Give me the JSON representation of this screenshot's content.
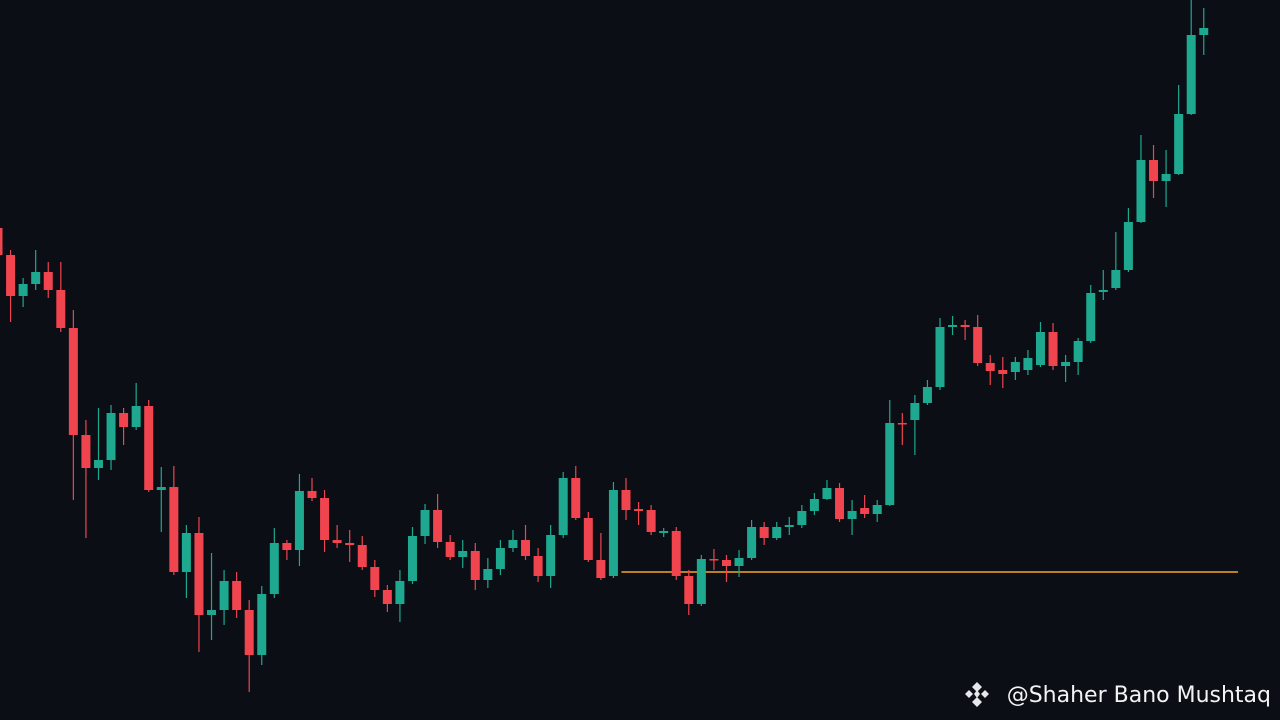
{
  "chart_data": {
    "type": "candlestick",
    "ylim": [
      0,
      720
    ],
    "up_color": "#1ea88f",
    "down_color": "#f0444f",
    "open": [
      492,
      465,
      424,
      436,
      448,
      430,
      392,
      285,
      252,
      260,
      307,
      293,
      314,
      230,
      233,
      148,
      187,
      105,
      110,
      139,
      110,
      65,
      126,
      177,
      170,
      229,
      222,
      180,
      177,
      175,
      153,
      130,
      116,
      139,
      184,
      210,
      178,
      163,
      169,
      140,
      151,
      172,
      180,
      164,
      144,
      185,
      242,
      202,
      160,
      144,
      230,
      211,
      210,
      187,
      189,
      144,
      116,
      161,
      160,
      154,
      162,
      193,
      182,
      193,
      195,
      209,
      221,
      232,
      201,
      212,
      206,
      215,
      297,
      300,
      317,
      333,
      393,
      395,
      393,
      357,
      350,
      348,
      350,
      355,
      388,
      354,
      358,
      379,
      428,
      432,
      450,
      498,
      560,
      539,
      546,
      606,
      685
    ],
    "high": [
      498,
      470,
      442,
      470,
      458,
      458,
      410,
      300,
      312,
      315,
      312,
      337,
      320,
      253,
      254,
      195,
      203,
      167,
      150,
      148,
      120,
      134,
      192,
      180,
      246,
      242,
      230,
      195,
      190,
      184,
      160,
      135,
      150,
      193,
      216,
      226,
      185,
      180,
      177,
      162,
      180,
      190,
      195,
      172,
      195,
      248,
      254,
      208,
      187,
      238,
      242,
      218,
      215,
      192,
      193,
      150,
      165,
      171,
      165,
      170,
      200,
      198,
      198,
      203,
      215,
      227,
      240,
      237,
      220,
      225,
      220,
      320,
      307,
      325,
      340,
      402,
      404,
      400,
      405,
      365,
      363,
      363,
      370,
      398,
      397,
      365,
      382,
      435,
      450,
      488,
      512,
      585,
      575,
      570,
      635,
      720,
      712
    ],
    "low": [
      462,
      398,
      413,
      430,
      422,
      388,
      220,
      182,
      240,
      250,
      275,
      290,
      228,
      188,
      145,
      122,
      68,
      80,
      95,
      102,
      28,
      55,
      122,
      160,
      154,
      219,
      168,
      172,
      158,
      150,
      123,
      108,
      98,
      136,
      176,
      172,
      160,
      152,
      130,
      132,
      145,
      168,
      160,
      138,
      132,
      182,
      200,
      158,
      140,
      142,
      200,
      195,
      185,
      183,
      140,
      105,
      114,
      150,
      138,
      143,
      160,
      175,
      180,
      185,
      192,
      205,
      220,
      198,
      185,
      202,
      198,
      214,
      275,
      265,
      315,
      330,
      385,
      380,
      354,
      335,
      332,
      340,
      345,
      353,
      350,
      338,
      345,
      377,
      420,
      430,
      448,
      497,
      522,
      513,
      545,
      605,
      665
    ],
    "close": [
      465,
      424,
      436,
      448,
      430,
      392,
      285,
      252,
      260,
      307,
      293,
      314,
      230,
      233,
      148,
      187,
      105,
      110,
      139,
      110,
      65,
      126,
      177,
      170,
      229,
      222,
      180,
      177,
      175,
      153,
      130,
      116,
      139,
      184,
      210,
      178,
      163,
      169,
      140,
      151,
      172,
      180,
      164,
      144,
      185,
      242,
      202,
      160,
      142,
      230,
      210,
      209,
      188,
      189,
      144,
      116,
      161,
      160,
      154,
      162,
      193,
      182,
      193,
      195,
      209,
      221,
      232,
      201,
      209,
      206,
      215,
      297,
      296,
      317,
      333,
      393,
      395,
      393,
      357,
      349,
      346,
      358,
      362,
      388,
      354,
      358,
      379,
      427,
      430,
      450,
      498,
      560,
      539,
      546,
      606,
      685,
      692
    ],
    "hline": {
      "value": 148,
      "color": "#f5a623"
    },
    "watermark": "@Shaher Bano Mushtaq"
  }
}
